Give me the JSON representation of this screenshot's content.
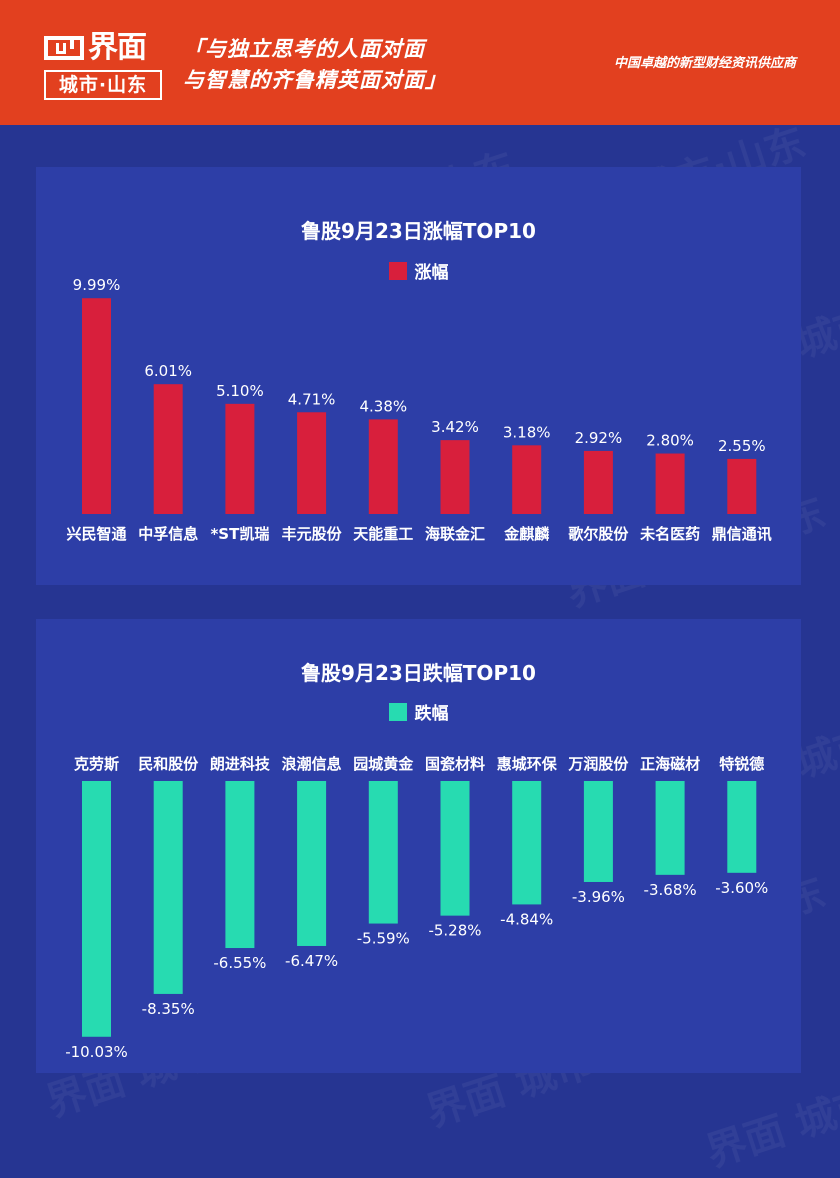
{
  "header": {
    "logo_name": "界面",
    "logo_city": "城市·山东",
    "slogan_line1": "「与独立思考的人面对面",
    "slogan_line2": "与智慧的齐鲁精英面对面」",
    "tagline": "中国卓越的新型财经资讯供应商"
  },
  "watermark": "界面 城市·山东",
  "colors": {
    "header_bg": "#e2401f",
    "page_bg": "#263592",
    "panel_bg": "#2d3ea7",
    "gain_bar": "#d81f3c",
    "loss_bar": "#27dbb1"
  },
  "chart_data": [
    {
      "type": "bar",
      "title": "鲁股9月23日涨幅TOP10",
      "legend": "涨幅",
      "legend_position": "top",
      "categories": [
        "兴民智通",
        "中孚信息",
        "*ST凯瑞",
        "丰元股份",
        "天能重工",
        "海联金汇",
        "金麒麟",
        "歌尔股份",
        "未名医药",
        "鼎信通讯"
      ],
      "values": [
        9.99,
        6.01,
        5.1,
        4.71,
        4.38,
        3.42,
        3.18,
        2.92,
        2.8,
        2.55
      ],
      "labels": [
        "9.99%",
        "6.01%",
        "5.10%",
        "4.71%",
        "4.38%",
        "3.42%",
        "3.18%",
        "2.92%",
        "2.80%",
        "2.55%"
      ],
      "unit": "%",
      "grid": false
    },
    {
      "type": "bar",
      "title": "鲁股9月23日跌幅TOP10",
      "legend": "跌幅",
      "legend_position": "top",
      "categories": [
        "克劳斯",
        "民和股份",
        "朗进科技",
        "浪潮信息",
        "园城黄金",
        "国瓷材料",
        "惠城环保",
        "万润股份",
        "正海磁材",
        "特锐德"
      ],
      "values": [
        -10.03,
        -8.35,
        -6.55,
        -6.47,
        -5.59,
        -5.28,
        -4.84,
        -3.96,
        -3.68,
        -3.6
      ],
      "labels": [
        "-10.03%",
        "-8.35%",
        "-6.55%",
        "-6.47%",
        "-5.59%",
        "-5.28%",
        "-4.84%",
        "-3.96%",
        "-3.68%",
        "-3.60%"
      ],
      "unit": "%",
      "grid": false
    }
  ]
}
